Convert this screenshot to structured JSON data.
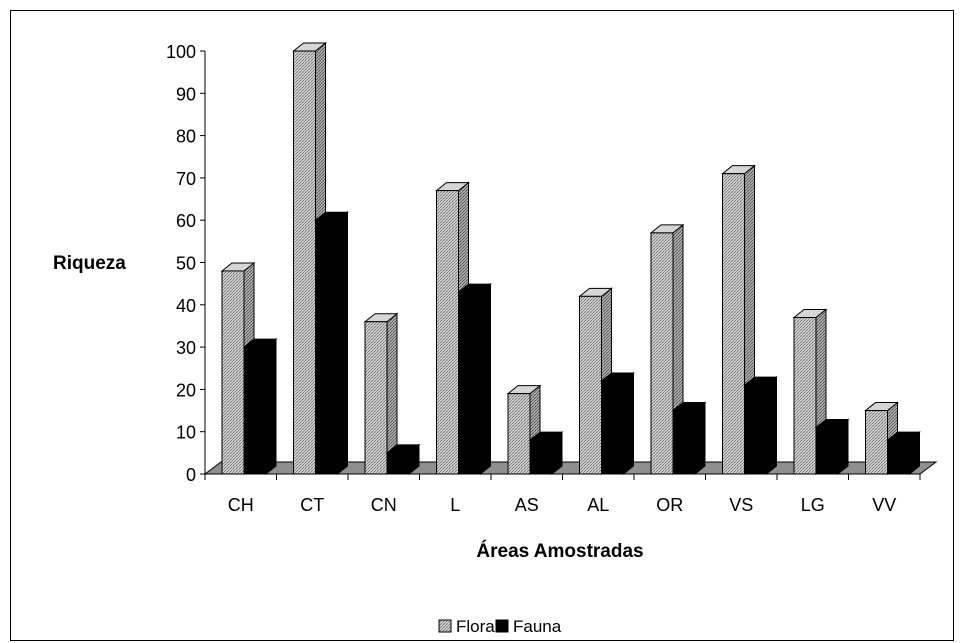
{
  "chart_data": {
    "type": "bar",
    "title": "",
    "xlabel": "Áreas Amostradas",
    "ylabel": "Riqueza",
    "ylim": [
      0,
      100
    ],
    "yticks": [
      0,
      10,
      20,
      30,
      40,
      50,
      60,
      70,
      80,
      90,
      100
    ],
    "categories": [
      "CH",
      "CT",
      "CN",
      "L",
      "AS",
      "AL",
      "OR",
      "VS",
      "LG",
      "VV"
    ],
    "series": [
      {
        "name": "Flora",
        "color": "#a8a8a8",
        "pattern": "crosshatch",
        "values": [
          48,
          100,
          36,
          67,
          19,
          42,
          57,
          71,
          37,
          15
        ]
      },
      {
        "name": "Fauna",
        "color": "#000000",
        "pattern": "solid",
        "values": [
          30,
          60,
          5,
          43,
          8,
          22,
          15,
          21,
          11,
          8
        ]
      }
    ],
    "legend_position": "bottom-center",
    "grid": false,
    "style": "3d-bars"
  }
}
